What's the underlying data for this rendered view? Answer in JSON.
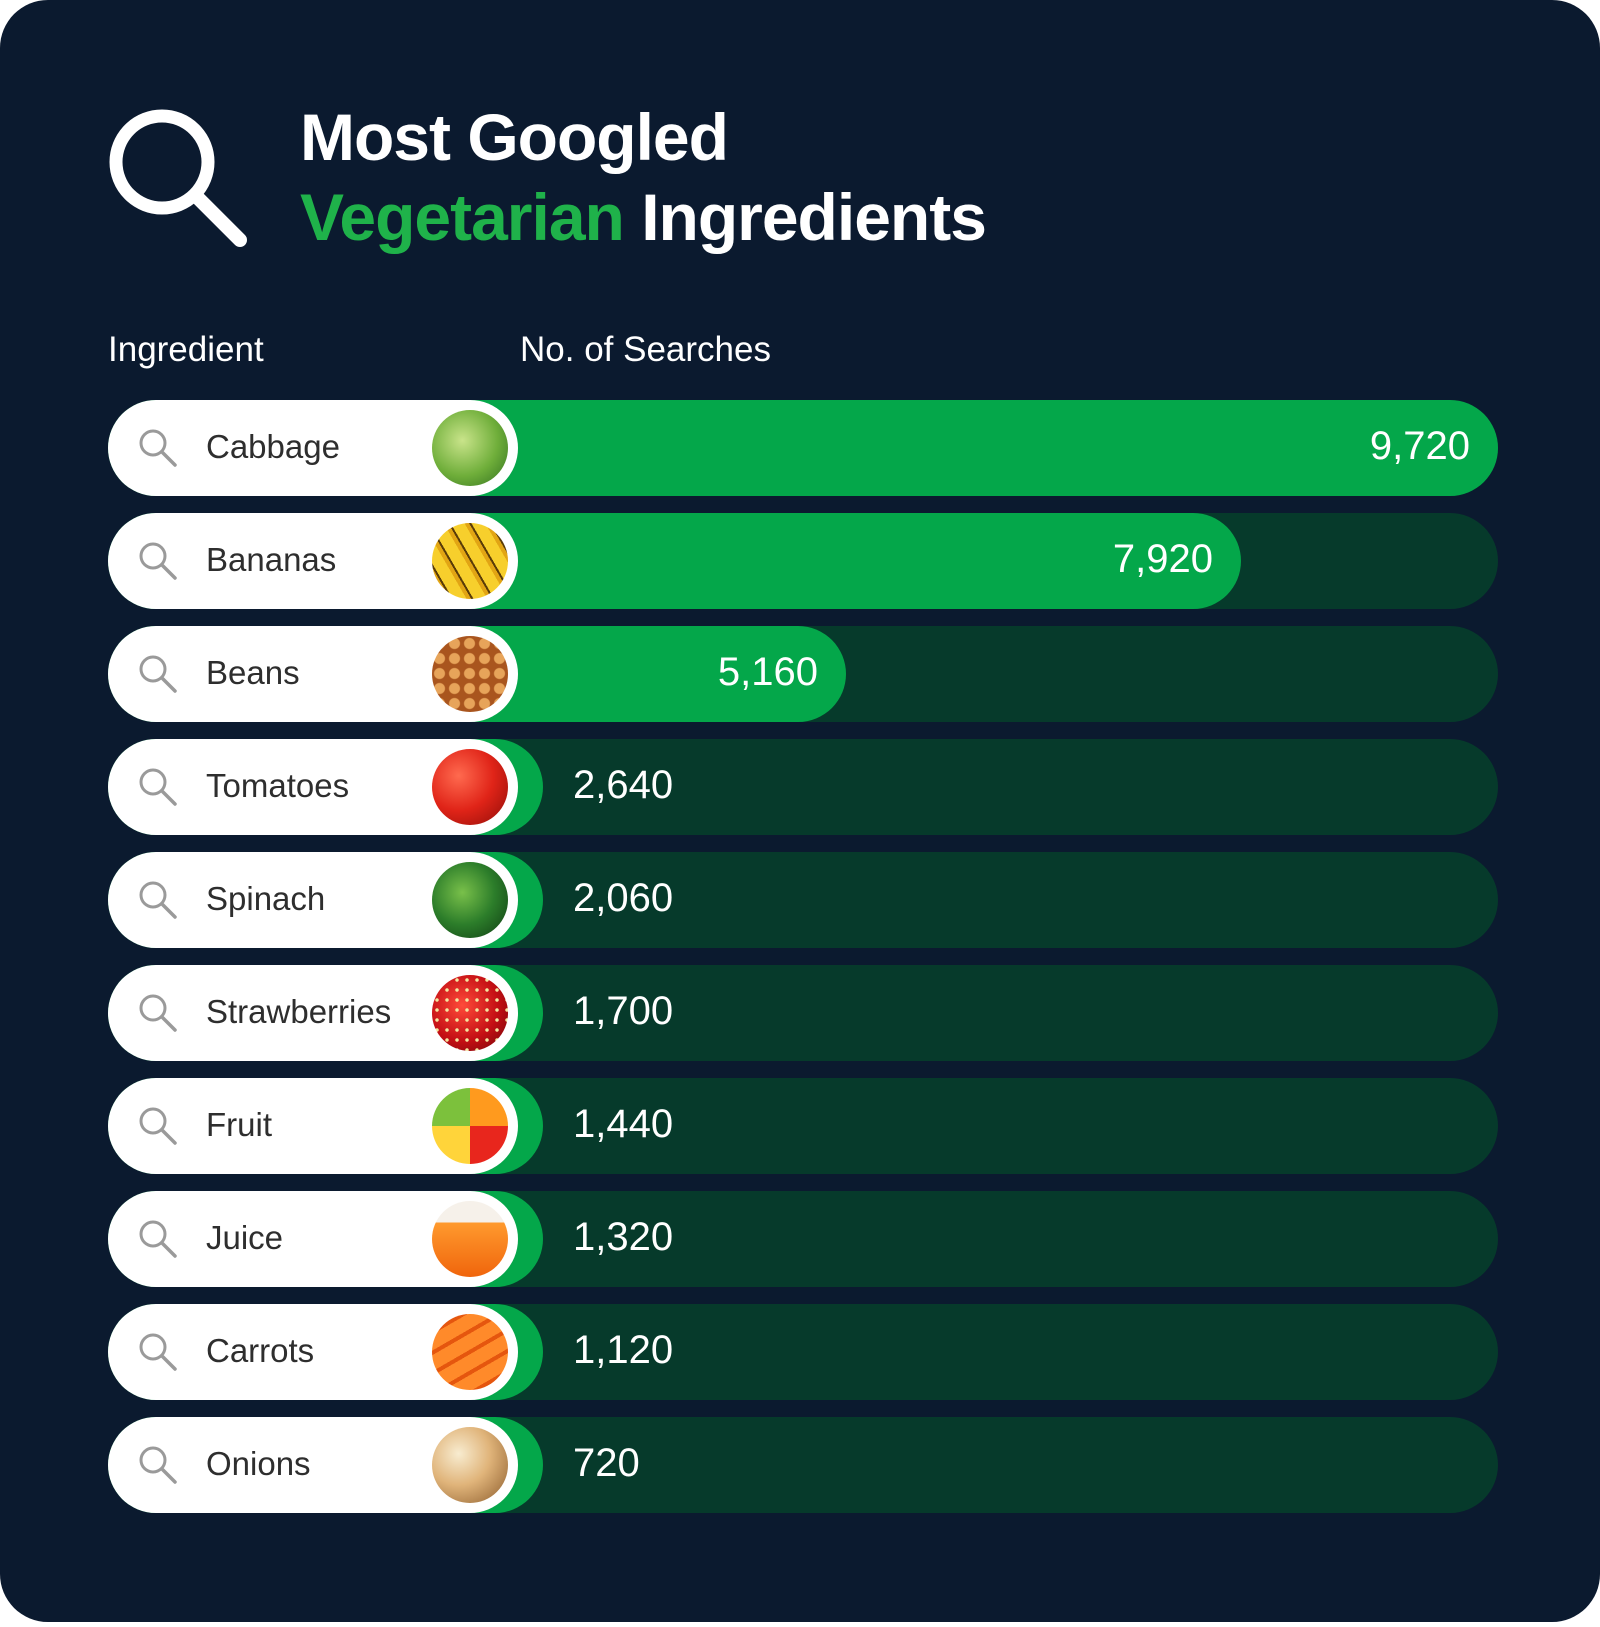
{
  "colors": {
    "background": "#0b1a2f",
    "accent_green": "#1fb24a",
    "bar_fill": "#04a74a",
    "bar_track": "#063a2b",
    "pill_bg": "#ffffff"
  },
  "header": {
    "icon": "search-icon",
    "title_line1": "Most Googled",
    "title_accent": "Vegetarian",
    "title_rest": "Ingredients"
  },
  "chart_data": {
    "type": "bar",
    "orientation": "horizontal",
    "title": "Most Googled Vegetarian Ingredients",
    "xlabel": "No. of Searches",
    "ylabel": "Ingredient",
    "categories": [
      "Cabbage",
      "Bananas",
      "Beans",
      "Tomatoes",
      "Spinach",
      "Strawberries",
      "Fruit",
      "Juice",
      "Carrots",
      "Onions"
    ],
    "values": [
      9720,
      7920,
      5160,
      2640,
      2060,
      1700,
      1440,
      1320,
      1120,
      720
    ],
    "value_labels": [
      "9,720",
      "7,920",
      "5,160",
      "2,640",
      "2,060",
      "1,700",
      "1,440",
      "1,320",
      "1,120",
      "720"
    ],
    "xlim": [
      0,
      9720
    ],
    "grid": false,
    "legend": "none",
    "row_icons": [
      "cabbage-photo",
      "bananas-photo",
      "beans-photo",
      "tomatoes-photo",
      "spinach-photo",
      "strawberries-photo",
      "fruit-photo",
      "juice-photo",
      "carrots-photo",
      "onions-photo"
    ]
  }
}
